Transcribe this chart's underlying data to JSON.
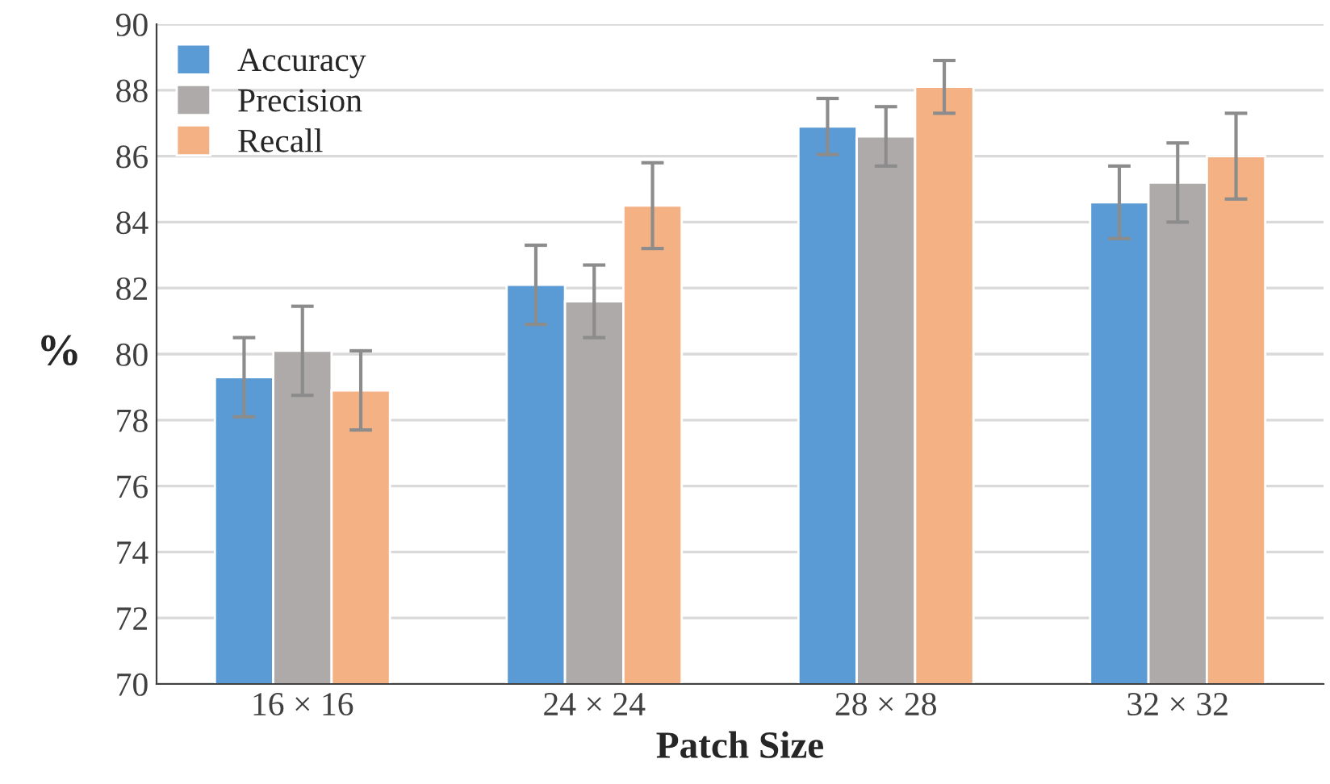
{
  "chart_data": {
    "type": "bar",
    "xlabel": "Patch Size",
    "ylabel": "%",
    "categories": [
      "16 × 16",
      "24 × 24",
      "28 × 28",
      "32 × 32"
    ],
    "series": [
      {
        "name": "Accuracy",
        "color": "#5b9bd5",
        "values": [
          79.3,
          82.1,
          86.9,
          84.6
        ],
        "errors": [
          1.2,
          1.2,
          0.85,
          1.1
        ]
      },
      {
        "name": "Precision",
        "color": "#aeaaaa",
        "values": [
          80.1,
          81.6,
          86.6,
          85.2
        ],
        "errors": [
          1.35,
          1.1,
          0.9,
          1.2
        ]
      },
      {
        "name": "Recall",
        "color": "#f4b183",
        "values": [
          78.9,
          84.5,
          88.1,
          86.0
        ],
        "errors": [
          1.2,
          1.3,
          0.8,
          1.3
        ]
      }
    ],
    "ylim": [
      70,
      90
    ],
    "yticks": [
      70,
      72,
      74,
      76,
      78,
      80,
      82,
      84,
      86,
      88,
      90
    ],
    "grid": "y",
    "legend": "top left"
  }
}
